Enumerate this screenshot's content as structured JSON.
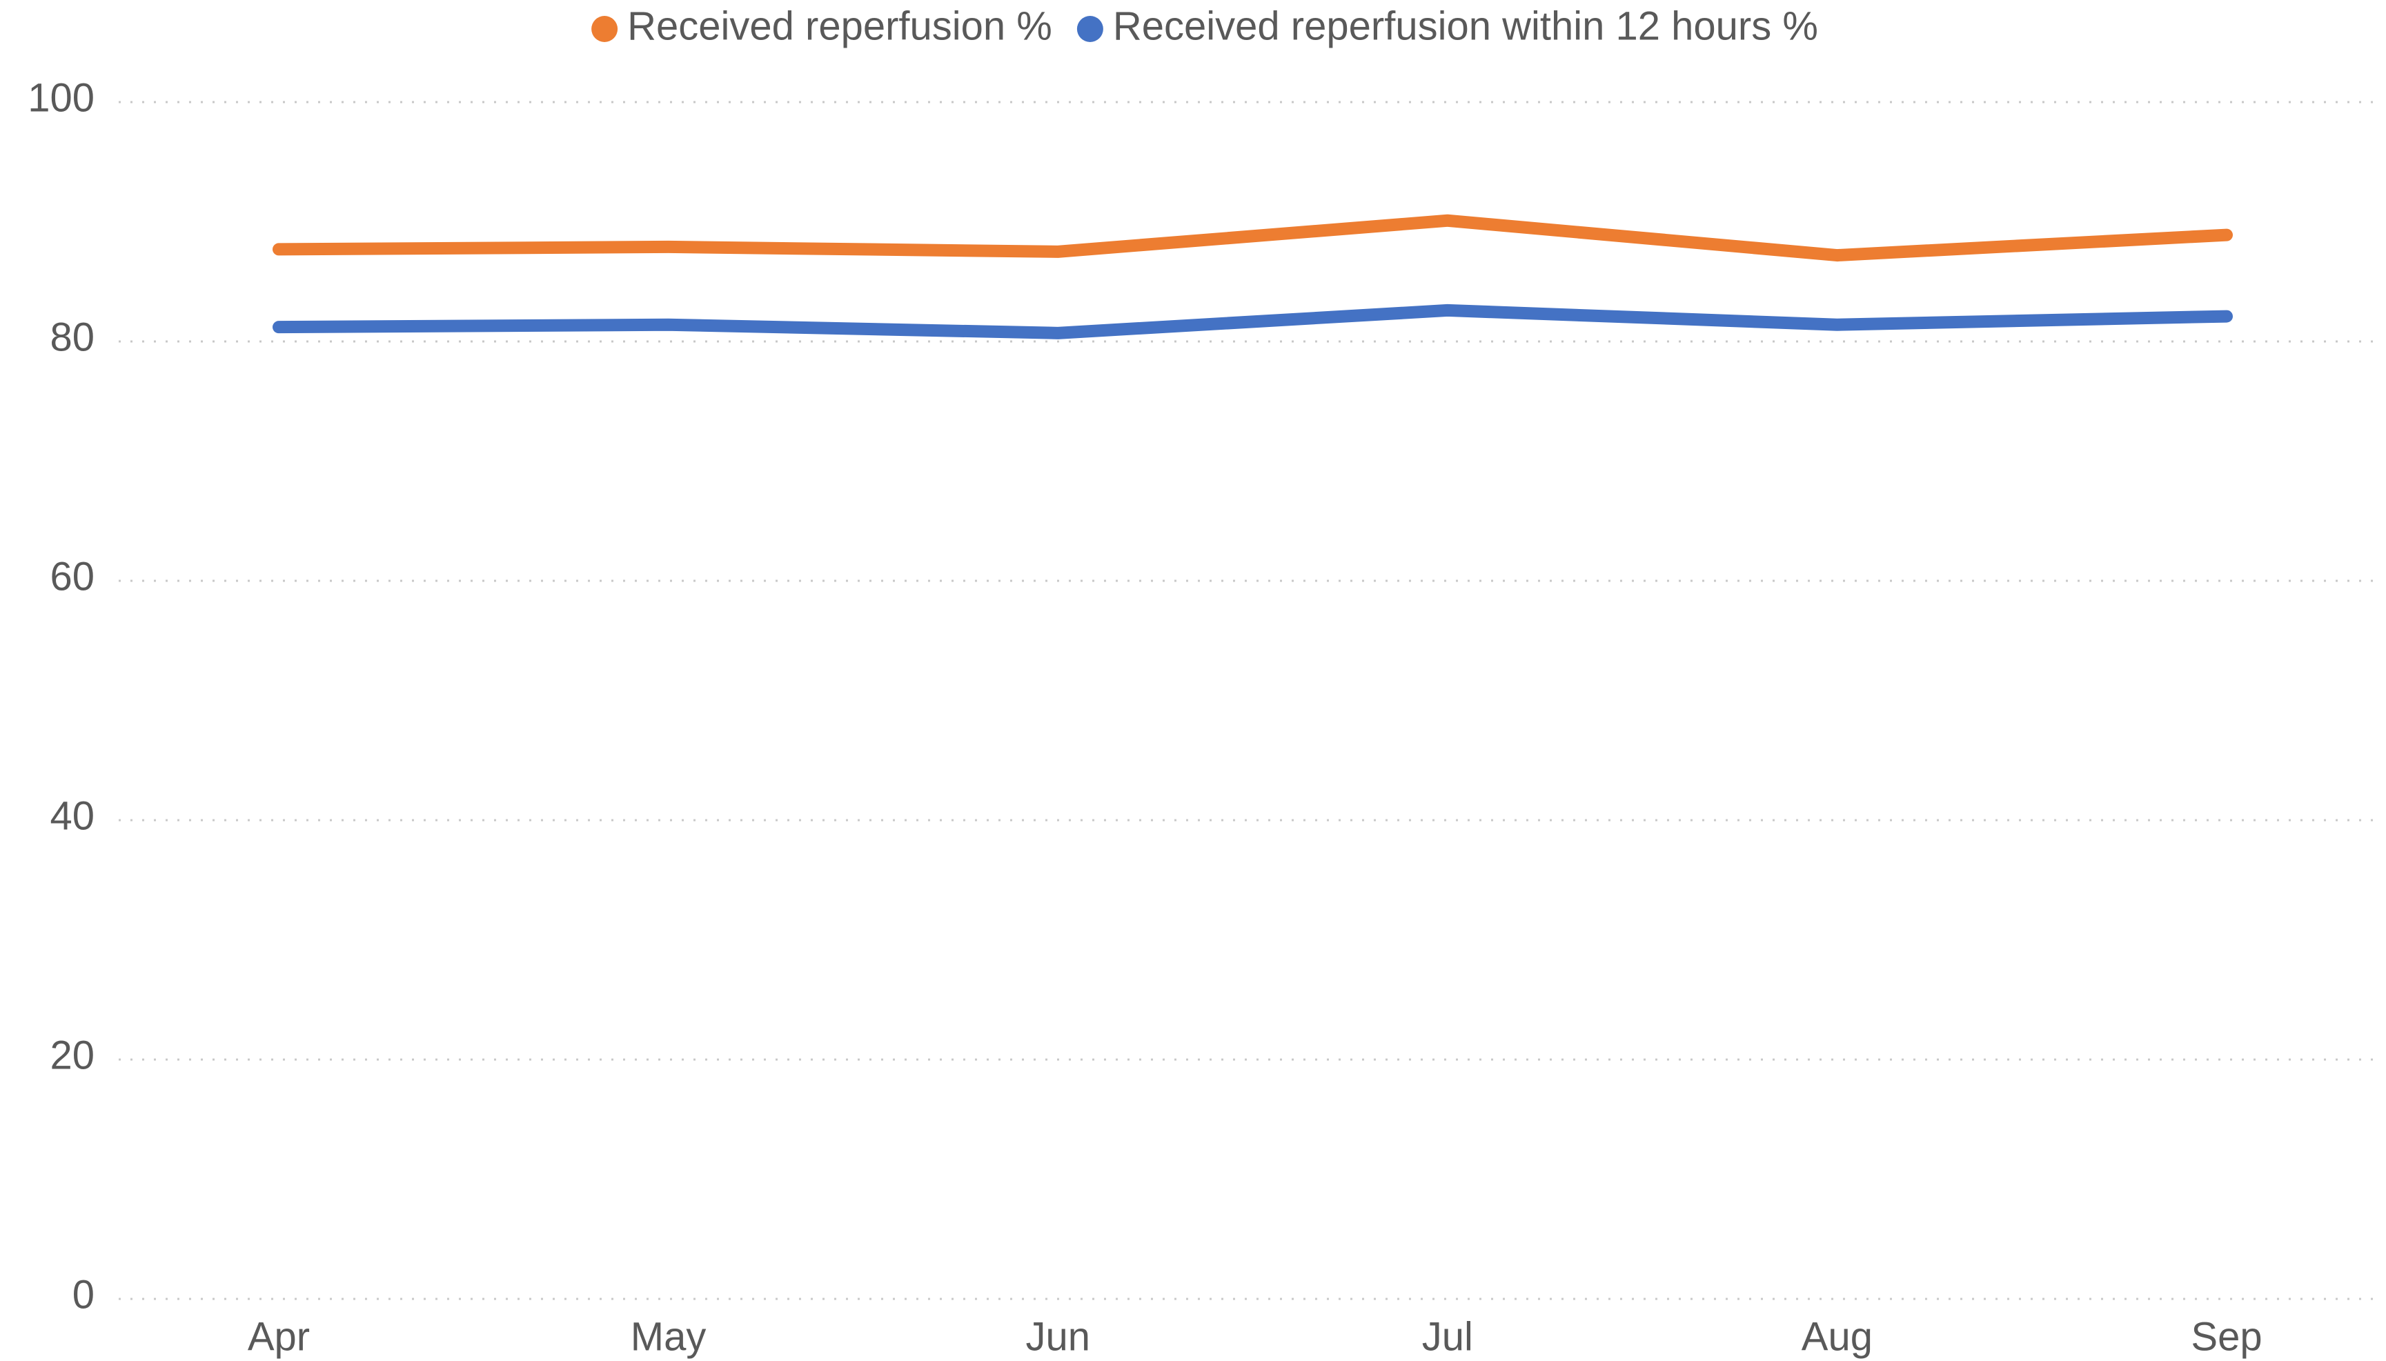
{
  "chart_data": {
    "type": "line",
    "categories": [
      "Apr",
      "May",
      "Jun",
      "Jul",
      "Aug",
      "Sep"
    ],
    "series": [
      {
        "name": "Received reperfusion %",
        "color": "#ed7d31",
        "values": [
          87.7,
          87.9,
          87.5,
          90.1,
          87.2,
          88.9
        ]
      },
      {
        "name": "Received reperfusion within 12 hours %",
        "color": "#4472c4",
        "values": [
          81.2,
          81.4,
          80.7,
          82.6,
          81.4,
          82.1
        ]
      }
    ],
    "ylim": [
      0,
      100
    ],
    "yticks": [
      0,
      20,
      40,
      60,
      80,
      100
    ],
    "grid": true,
    "legend": "top"
  }
}
